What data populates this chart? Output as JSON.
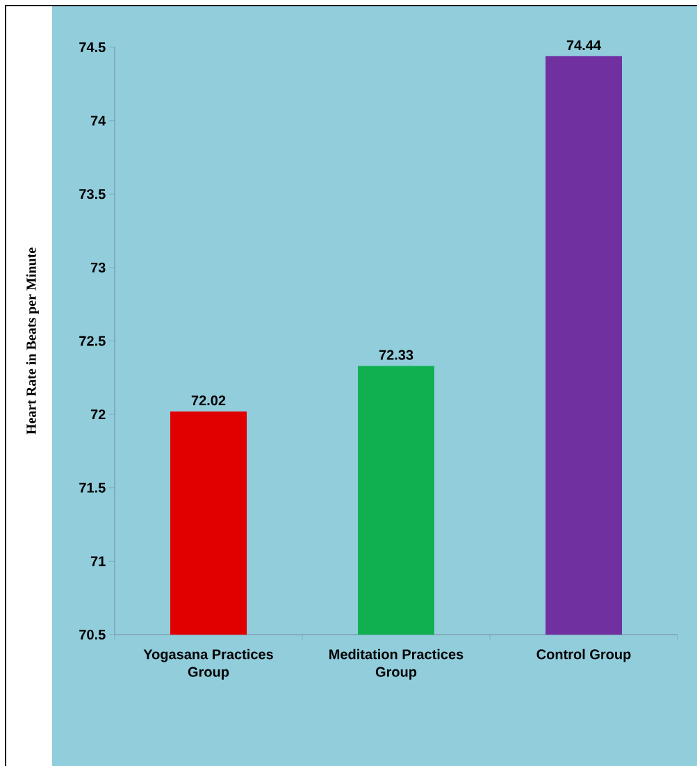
{
  "chart_data": {
    "type": "bar",
    "ylabel": "Heart Rate  in Beats per Minute",
    "categories": [
      "Yogasana Practices Group",
      "Meditation Practices Group",
      "Control  Group"
    ],
    "values": [
      72.02,
      72.33,
      74.44
    ],
    "colors": [
      "#e00000",
      "#10b050",
      "#7030a0"
    ],
    "ylim": [
      70.5,
      74.5
    ],
    "yticks": [
      70.5,
      71,
      71.5,
      72,
      72.5,
      73,
      73.5,
      74,
      74.5
    ],
    "data_labels": true
  }
}
